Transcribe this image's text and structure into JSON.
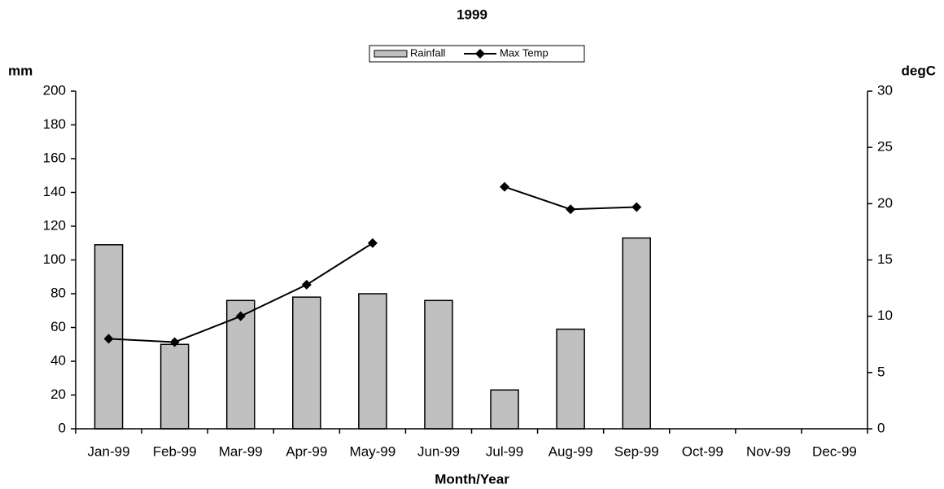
{
  "chart_data": {
    "type": "bar_line",
    "title": "1999",
    "y_label": "mm",
    "y2_label": "degC",
    "x_label": "Month/Year",
    "categories": [
      "Jan-99",
      "Feb-99",
      "Mar-99",
      "Apr-99",
      "May-99",
      "Jun-99",
      "Jul-99",
      "Aug-99",
      "Sep-99",
      "Oct-99",
      "Nov-99",
      "Dec-99"
    ],
    "series": [
      {
        "name": "Rainfall",
        "type": "bar",
        "color": "#c0c0c0",
        "values": [
          109,
          50,
          76,
          78,
          80,
          76,
          23,
          59,
          113,
          null,
          null,
          null
        ]
      },
      {
        "name": "Max Temp",
        "type": "line",
        "axis": "y2",
        "color": "#000000",
        "values": [
          8.0,
          7.7,
          10.0,
          12.8,
          16.5,
          null,
          21.5,
          19.5,
          19.7,
          null,
          null,
          null
        ]
      }
    ],
    "ylim": [
      0,
      200
    ],
    "yticks": [
      0,
      20,
      40,
      60,
      80,
      100,
      120,
      140,
      160,
      180,
      200
    ],
    "y2lim": [
      0,
      30
    ],
    "y2ticks": [
      0,
      5,
      10,
      15,
      20,
      25,
      30
    ],
    "legend": "top",
    "grid": false
  }
}
